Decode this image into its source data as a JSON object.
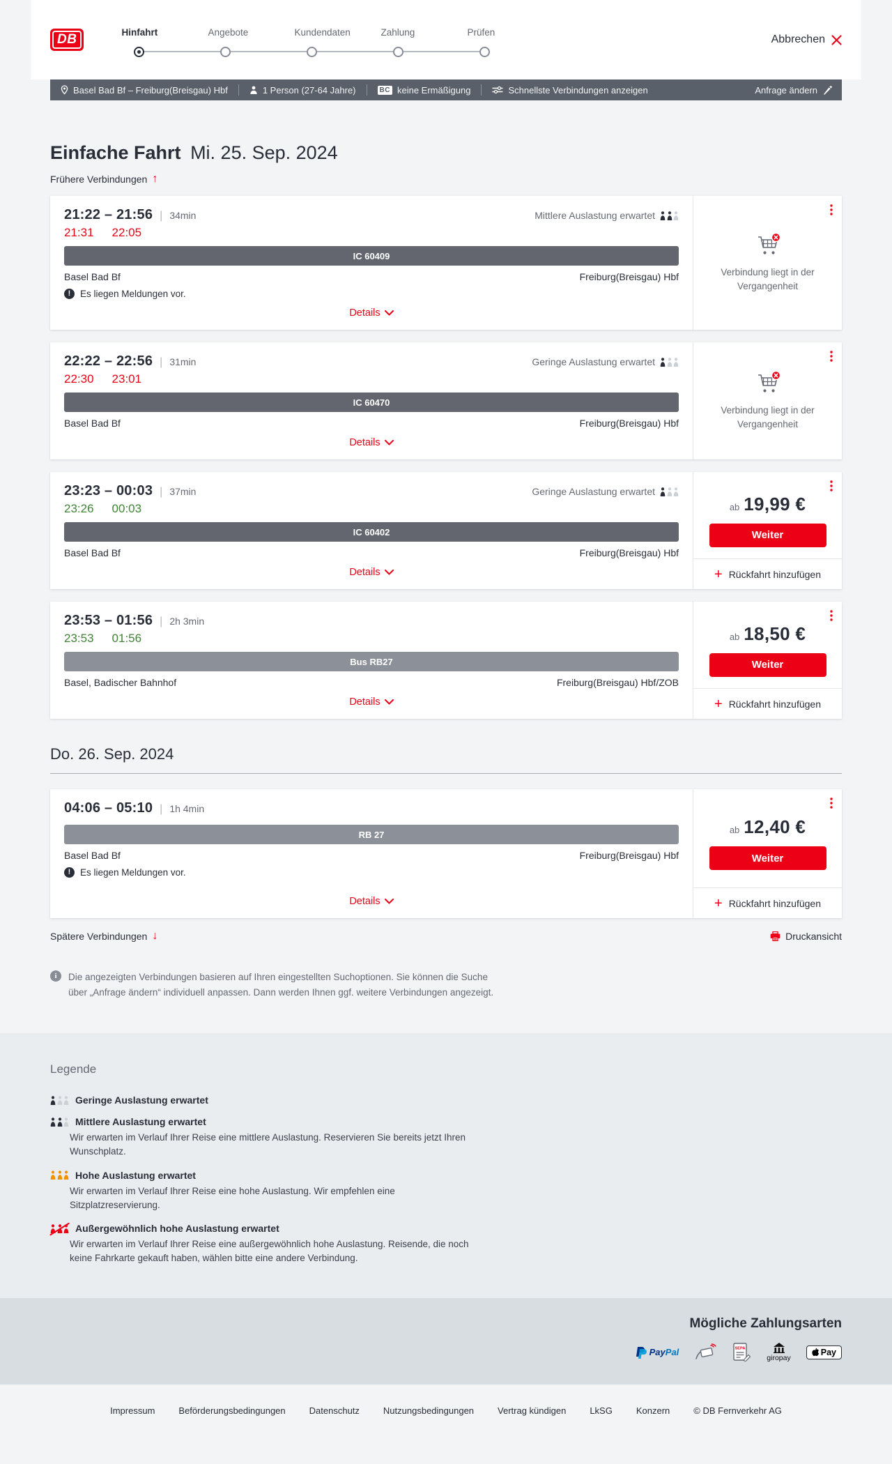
{
  "colors": {
    "brand_red": "#ec0016",
    "dark": "#282d37",
    "gray": "#646973",
    "green": "#408335"
  },
  "header": {
    "logo": "DB",
    "steps": [
      {
        "label": "Hinfahrt",
        "active": true
      },
      {
        "label": "Angebote",
        "active": false
      },
      {
        "label": "Kundendaten",
        "active": false
      },
      {
        "label": "Zahlung",
        "active": false
      },
      {
        "label": "Prüfen",
        "active": false
      }
    ],
    "cancel_label": "Abbrechen"
  },
  "summary": {
    "route": "Basel Bad Bf – Freiburg(Breisgau) Hbf",
    "traveler": "1 Person (27-64 Jahre)",
    "bc_badge": "BC",
    "discount": "keine Ermäßigung",
    "fastest": "Schnellste Verbindungen anzeigen",
    "edit": "Anfrage ändern"
  },
  "trip": {
    "title": "Einfache Fahrt",
    "date": "Mi. 25. Sep. 2024"
  },
  "nav": {
    "earlier": "Frühere Verbindungen",
    "later": "Spätere Verbindungen",
    "print": "Druckansicht"
  },
  "day2_title": "Do. 26. Sep. 2024",
  "labels": {
    "details": "Details",
    "price_prefix": "ab",
    "weiter": "Weiter",
    "add_return": "Rückfahrt hinzufügen",
    "past_connection": "Verbindung liegt in der Vergangenheit"
  },
  "connections": [
    {
      "time_range": "21:22 – 21:56",
      "duration": "34min",
      "occupancy_label": "Mittlere Auslastung erwartet",
      "occupancy_level": 2,
      "actual_dep": "21:31",
      "actual_arr": "22:05",
      "train": "IC 60409",
      "from": "Basel Bad Bf",
      "to": "Freiburg(Breisgau) Hbf",
      "message": "Es liegen Meldungen vor."
    },
    {
      "time_range": "22:22 – 22:56",
      "duration": "31min",
      "occupancy_label": "Geringe Auslastung erwartet",
      "occupancy_level": 1,
      "actual_dep": "22:30",
      "actual_arr": "23:01",
      "train": "IC 60470",
      "from": "Basel Bad Bf",
      "to": "Freiburg(Breisgau) Hbf"
    },
    {
      "time_range": "23:23 – 00:03",
      "duration": "37min",
      "occupancy_label": "Geringe Auslastung erwartet",
      "occupancy_level": 1,
      "actual_dep": "23:26",
      "actual_arr": "00:03",
      "train": "IC 60402",
      "from": "Basel Bad Bf",
      "to": "Freiburg(Breisgau) Hbf",
      "price": "19,99 €"
    },
    {
      "time_range": "23:53 – 01:56",
      "duration": "2h 3min",
      "actual_dep": "23:53",
      "actual_arr": "01:56",
      "train": "Bus RB27",
      "from": "Basel, Badischer Bahnhof",
      "to": "Freiburg(Breisgau) Hbf/ZOB",
      "price": "18,50 €"
    },
    {
      "time_range": "04:06 – 05:10",
      "duration": "1h 4min",
      "train": "RB 27",
      "from": "Basel Bad Bf",
      "to": "Freiburg(Breisgau) Hbf",
      "message": "Es liegen Meldungen vor.",
      "price": "12,40 €"
    }
  ],
  "info_note": "Die angezeigten Verbindungen basieren auf Ihren eingestellten Suchoptionen. Sie können die Suche über „Anfrage ändern“ individuell anpassen. Dann werden Ihnen ggf. weitere Verbindungen angezeigt.",
  "legend": {
    "title": "Legende",
    "items": [
      {
        "label": "Geringe Auslastung erwartet",
        "level": 1,
        "desc": ""
      },
      {
        "label": "Mittlere Auslastung erwartet",
        "level": 2,
        "desc": "Wir erwarten im Verlauf Ihrer Reise eine mittlere Auslastung. Reservieren Sie bereits jetzt Ihren Wunschplatz."
      },
      {
        "label": "Hohe Auslastung erwartet",
        "level": 3,
        "desc": "Wir erwarten im Verlauf Ihrer Reise eine hohe Auslastung. Wir empfehlen eine Sitzplatzreservierung."
      },
      {
        "label": "Außergewöhnlich hohe Auslastung erwartet",
        "level": 4,
        "desc": "Wir erwarten im Verlauf Ihrer Reise eine außergewöhnlich hohe Auslastung. Reisende, die noch keine Fahrkarte gekauft haben, wählen bitte eine andere Verbindung."
      }
    ]
  },
  "payments": {
    "title": "Mögliche Zahlungsarten",
    "paypal_1": "Pay",
    "paypal_2": "Pal",
    "giropay": "giropay",
    "applepay": "Pay",
    "sepa": "SEPA"
  },
  "footer_links": [
    "Impressum",
    "Beförderungsbedingungen",
    "Datenschutz",
    "Nutzungsbedingungen",
    "Vertrag kündigen",
    "LkSG",
    "Konzern",
    "© DB Fernverkehr AG"
  ]
}
